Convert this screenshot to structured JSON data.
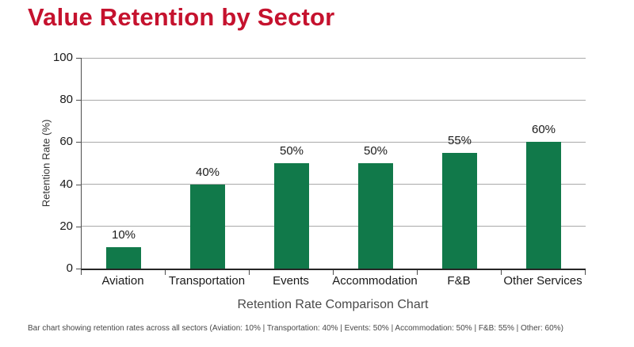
{
  "page_title": "Value Retention by Sector",
  "colors": {
    "title_red": "#C5122E",
    "bar_green": "#11794A",
    "axis_line": "#262626",
    "gridline": "#a9a9a9",
    "tick_text": "#1a1a1a",
    "caption_text": "#4a4a4a"
  },
  "chart_data": {
    "type": "bar",
    "categories": [
      "Aviation",
      "Transportation",
      "Events",
      "Accommodation",
      "F&B",
      "Other Services"
    ],
    "values": [
      10,
      40,
      50,
      50,
      55,
      60
    ],
    "bar_labels": [
      "10%",
      "40%",
      "50%",
      "50%",
      "55%",
      "60%"
    ],
    "title": "Value Retention by Sector",
    "xlabel": "Retention Rate Comparison Chart",
    "ylabel": "Retention Rate (%)",
    "ylim": [
      0,
      100
    ],
    "yticks": [
      0,
      20,
      40,
      60,
      80,
      100
    ],
    "grid": true,
    "legend": false,
    "bar_color": "#11794A"
  },
  "footer": {
    "caption": "Bar chart showing retention rates across all sectors (Aviation: 10% | Transportation: 40% | Events: 50% | Accommodation: 50% | F&B: 55% | Other: 60%)"
  }
}
